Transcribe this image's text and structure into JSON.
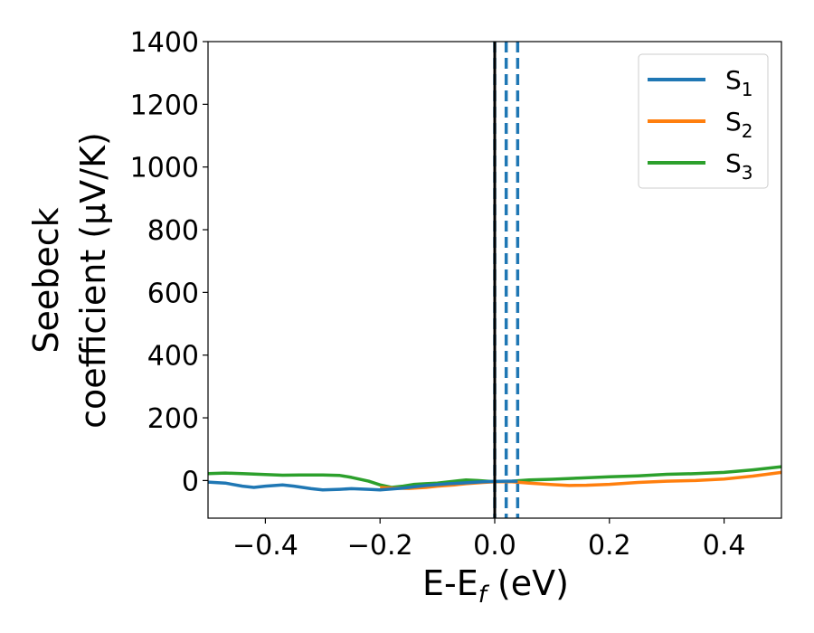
{
  "chart_data": {
    "type": "line",
    "xlabel": {
      "main": "E-E",
      "sub": "f",
      "tail": " (eV)"
    },
    "ylabel_line1": "Seebeck",
    "ylabel_line2": "coefficient  (μV/K)",
    "xlim": [
      -0.5,
      0.5
    ],
    "ylim": [
      -120,
      1400
    ],
    "xticks": [
      -0.4,
      -0.2,
      0.0,
      0.2,
      0.4
    ],
    "xtick_labels": [
      "−0.4",
      "−0.2",
      "0.0",
      "0.2",
      "0.4"
    ],
    "yticks": [
      0,
      200,
      400,
      600,
      800,
      1000,
      1200,
      1400
    ],
    "ytick_labels": [
      "0",
      "200",
      "400",
      "600",
      "800",
      "1000",
      "1200",
      "1400"
    ],
    "grid": false,
    "legend_position": "top-right",
    "colors": {
      "s1": "#1f77b4",
      "s2": "#ff7f0e",
      "s3": "#2ca02c",
      "fermi_line": "#000000"
    },
    "series": [
      {
        "name_base": "S",
        "name_sub": "1",
        "color": "#1f77b4",
        "x": [
          -0.5,
          -0.47,
          -0.44,
          -0.42,
          -0.4,
          -0.37,
          -0.35,
          -0.32,
          -0.3,
          -0.27,
          -0.25,
          -0.22,
          -0.2,
          -0.18,
          -0.16,
          -0.14,
          -0.12,
          -0.1,
          -0.08,
          -0.06,
          -0.04,
          -0.02,
          0.0,
          0.02,
          0.04
        ],
        "y": [
          -5,
          -8,
          -18,
          -22,
          -18,
          -14,
          -18,
          -26,
          -30,
          -28,
          -26,
          -28,
          -30,
          -27,
          -24,
          -20,
          -16,
          -13,
          -10,
          -8,
          -6,
          -4,
          -3,
          -2,
          -2
        ]
      },
      {
        "name_base": "S",
        "name_sub": "2",
        "color": "#ff7f0e",
        "x": [
          -0.2,
          -0.18,
          -0.15,
          -0.12,
          -0.1,
          -0.07,
          -0.05,
          -0.02,
          0.0,
          0.03,
          0.06,
          0.1,
          0.13,
          0.16,
          0.2,
          0.25,
          0.3,
          0.35,
          0.4,
          0.45,
          0.5
        ],
        "y": [
          -22,
          -24,
          -25,
          -22,
          -18,
          -14,
          -10,
          -6,
          -4,
          -4,
          -8,
          -13,
          -16,
          -15,
          -12,
          -6,
          -2,
          0,
          5,
          14,
          26
        ]
      },
      {
        "name_base": "S",
        "name_sub": "3",
        "color": "#2ca02c",
        "x": [
          -0.5,
          -0.47,
          -0.44,
          -0.4,
          -0.37,
          -0.34,
          -0.3,
          -0.27,
          -0.25,
          -0.22,
          -0.2,
          -0.18,
          -0.16,
          -0.14,
          -0.12,
          -0.1,
          -0.07,
          -0.05,
          -0.03,
          0.0,
          0.03,
          0.06,
          0.1,
          0.15,
          0.2,
          0.25,
          0.3,
          0.35,
          0.4,
          0.45,
          0.5
        ],
        "y": [
          22,
          24,
          22,
          19,
          17,
          18,
          18,
          16,
          10,
          -2,
          -14,
          -22,
          -18,
          -12,
          -10,
          -8,
          -2,
          2,
          0,
          -4,
          -2,
          2,
          4,
          8,
          12,
          15,
          20,
          22,
          26,
          34,
          44
        ]
      }
    ],
    "fermi_line_x": 0.0,
    "dashed_lines_x": [
      0.0,
      0.02,
      0.04
    ]
  }
}
